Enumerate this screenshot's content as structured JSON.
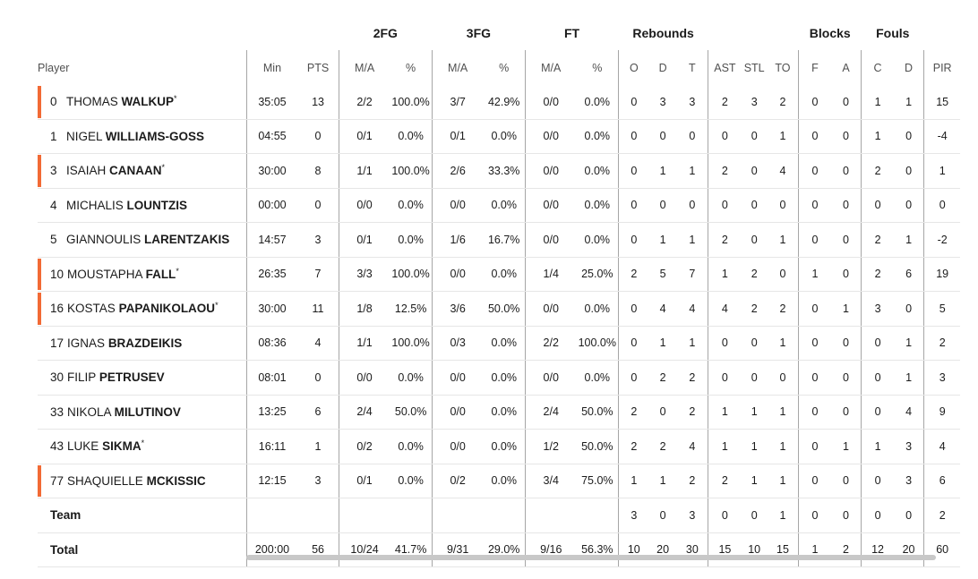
{
  "columns": {
    "groups": {
      "fg2": "2FG",
      "fg3": "3FG",
      "ft": "FT",
      "rebounds": "Rebounds",
      "blocks": "Blocks",
      "fouls": "Fouls"
    },
    "sub": [
      "Player",
      "Min",
      "PTS",
      "M/A",
      "%",
      "M/A",
      "%",
      "M/A",
      "%",
      "O",
      "D",
      "T",
      "AST",
      "STL",
      "TO",
      "F",
      "A",
      "C",
      "D",
      "PIR"
    ]
  },
  "players": [
    {
      "starter": true,
      "num": "0",
      "first": "THOMAS",
      "last": "WALKUP",
      "star": "*",
      "stats": [
        "35:05",
        "13",
        "2/2",
        "100.0%",
        "3/7",
        "42.9%",
        "0/0",
        "0.0%",
        "0",
        "3",
        "3",
        "2",
        "3",
        "2",
        "0",
        "0",
        "1",
        "1",
        "15"
      ]
    },
    {
      "starter": false,
      "num": "1",
      "first": "NIGEL",
      "last": "WILLIAMS-GOSS",
      "star": "",
      "stats": [
        "04:55",
        "0",
        "0/1",
        "0.0%",
        "0/1",
        "0.0%",
        "0/0",
        "0.0%",
        "0",
        "0",
        "0",
        "0",
        "0",
        "1",
        "0",
        "0",
        "1",
        "0",
        "-4"
      ]
    },
    {
      "starter": true,
      "num": "3",
      "first": "ISAIAH",
      "last": "CANAAN",
      "star": "*",
      "stats": [
        "30:00",
        "8",
        "1/1",
        "100.0%",
        "2/6",
        "33.3%",
        "0/0",
        "0.0%",
        "0",
        "1",
        "1",
        "2",
        "0",
        "4",
        "0",
        "0",
        "2",
        "0",
        "1"
      ]
    },
    {
      "starter": false,
      "num": "4",
      "first": "MICHALIS",
      "last": "LOUNTZIS",
      "star": "",
      "stats": [
        "00:00",
        "0",
        "0/0",
        "0.0%",
        "0/0",
        "0.0%",
        "0/0",
        "0.0%",
        "0",
        "0",
        "0",
        "0",
        "0",
        "0",
        "0",
        "0",
        "0",
        "0",
        "0"
      ]
    },
    {
      "starter": false,
      "num": "5",
      "first": "GIANNOULIS",
      "last": "LARENTZAKIS",
      "star": "",
      "stats": [
        "14:57",
        "3",
        "0/1",
        "0.0%",
        "1/6",
        "16.7%",
        "0/0",
        "0.0%",
        "0",
        "1",
        "1",
        "2",
        "0",
        "1",
        "0",
        "0",
        "2",
        "1",
        "-2"
      ]
    },
    {
      "starter": true,
      "num": "10",
      "first": "MOUSTAPHA",
      "last": "FALL",
      "star": "*",
      "stats": [
        "26:35",
        "7",
        "3/3",
        "100.0%",
        "0/0",
        "0.0%",
        "1/4",
        "25.0%",
        "2",
        "5",
        "7",
        "1",
        "2",
        "0",
        "1",
        "0",
        "2",
        "6",
        "19"
      ]
    },
    {
      "starter": true,
      "num": "16",
      "first": "KOSTAS",
      "last": "PAPANIKOLAOU",
      "star": "*",
      "stats": [
        "30:00",
        "11",
        "1/8",
        "12.5%",
        "3/6",
        "50.0%",
        "0/0",
        "0.0%",
        "0",
        "4",
        "4",
        "4",
        "2",
        "2",
        "0",
        "1",
        "3",
        "0",
        "5"
      ]
    },
    {
      "starter": false,
      "num": "17",
      "first": "IGNAS",
      "last": "BRAZDEIKIS",
      "star": "",
      "stats": [
        "08:36",
        "4",
        "1/1",
        "100.0%",
        "0/3",
        "0.0%",
        "2/2",
        "100.0%",
        "0",
        "1",
        "1",
        "0",
        "0",
        "1",
        "0",
        "0",
        "0",
        "1",
        "2"
      ]
    },
    {
      "starter": false,
      "num": "30",
      "first": "FILIP",
      "last": "PETRUSEV",
      "star": "",
      "stats": [
        "08:01",
        "0",
        "0/0",
        "0.0%",
        "0/0",
        "0.0%",
        "0/0",
        "0.0%",
        "0",
        "2",
        "2",
        "0",
        "0",
        "0",
        "0",
        "0",
        "0",
        "1",
        "3"
      ]
    },
    {
      "starter": false,
      "num": "33",
      "first": "NIKOLA",
      "last": "MILUTINOV",
      "star": "",
      "stats": [
        "13:25",
        "6",
        "2/4",
        "50.0%",
        "0/0",
        "0.0%",
        "2/4",
        "50.0%",
        "2",
        "0",
        "2",
        "1",
        "1",
        "1",
        "0",
        "0",
        "0",
        "4",
        "9"
      ]
    },
    {
      "starter": false,
      "num": "43",
      "first": "LUKE",
      "last": "SIKMA",
      "star": "*",
      "stats": [
        "16:11",
        "1",
        "0/2",
        "0.0%",
        "0/0",
        "0.0%",
        "1/2",
        "50.0%",
        "2",
        "2",
        "4",
        "1",
        "1",
        "1",
        "0",
        "1",
        "1",
        "3",
        "4"
      ]
    },
    {
      "starter": true,
      "num": "77",
      "first": "SHAQUIELLE",
      "last": "MCKISSIC",
      "star": "",
      "stats": [
        "12:15",
        "3",
        "0/1",
        "0.0%",
        "0/2",
        "0.0%",
        "3/4",
        "75.0%",
        "1",
        "1",
        "2",
        "2",
        "1",
        "1",
        "0",
        "0",
        "0",
        "3",
        "6"
      ]
    }
  ],
  "team": {
    "label": "Team",
    "stats": [
      "",
      "",
      "",
      "",
      "",
      "",
      "",
      "",
      "3",
      "0",
      "3",
      "0",
      "0",
      "1",
      "0",
      "0",
      "0",
      "0",
      "2"
    ]
  },
  "total": {
    "label": "Total",
    "stats": [
      "200:00",
      "56",
      "10/24",
      "41.7%",
      "9/31",
      "29.0%",
      "9/16",
      "56.3%",
      "10",
      "20",
      "30",
      "15",
      "10",
      "15",
      "1",
      "2",
      "12",
      "20",
      "60"
    ]
  },
  "colors": {
    "starter_bar": "#f26a35",
    "divider": "#a6a6a6",
    "row_line": "#e6e6e6",
    "scrollbar": "#c8c8c8"
  }
}
